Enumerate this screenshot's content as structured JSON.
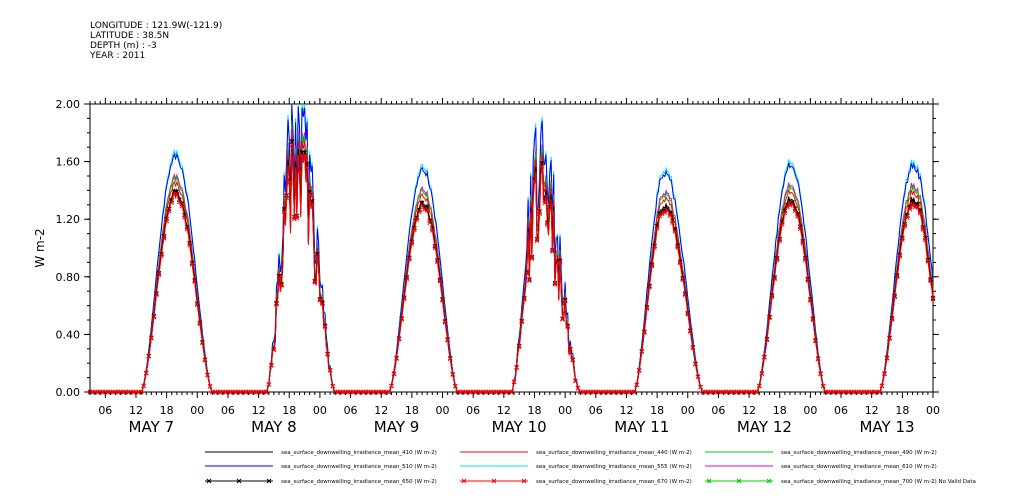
{
  "header": {
    "longitude": "LONGITUDE : 121.9W(-121.9)",
    "latitude": "LATITUDE : 38.5N",
    "depth": "DEPTH (m) : -3",
    "year": "YEAR : 2011"
  },
  "chart_data": {
    "type": "line",
    "ylabel": "W m-2",
    "ylim": [
      0,
      2
    ],
    "yticks": [
      "0.00",
      "0.40",
      "0.80",
      "1.20",
      "1.60",
      "2.00"
    ],
    "x_tick_labels": [
      "06",
      "12",
      "18",
      "00",
      "06",
      "12",
      "18",
      "00",
      "06",
      "12",
      "18",
      "00",
      "06",
      "12",
      "18",
      "00",
      "06",
      "12",
      "18",
      "00",
      "06",
      "12",
      "18",
      "00",
      "06",
      "12",
      "18",
      "00"
    ],
    "x_day_labels": [
      "MAY  7",
      "MAY  8",
      "MAY  9",
      "MAY 10",
      "MAY 11",
      "MAY 12",
      "MAY 13"
    ],
    "x_range_hours": [
      3,
      168
    ],
    "grid": false,
    "legend_placement": "bottom",
    "legend": [
      {
        "label": "sea_surface_downwelling_irradiance_mean_410 (W m-2)",
        "color": "#000000"
      },
      {
        "label": "sea_surface_downwelling_irradiance_mean_440 (W m-2)",
        "color": "#ff0000"
      },
      {
        "label": "sea_surface_downwelling_irradiance_mean_490 (W m-2)",
        "color": "#00cc00"
      },
      {
        "label": "sea_surface_downwelling_irradiance_mean_510 (W m-2)",
        "color": "#0000ff"
      },
      {
        "label": "sea_surface_downwelling_irradiance_mean_555 (W m-2)",
        "color": "#00e5e5"
      },
      {
        "label": "sea_surface_downwelling_irradiance_mean_610 (W m-2)",
        "color": "#e000e0"
      },
      {
        "label": "sea_surface_downwelling_irradiance_mean_650 (W m-2)",
        "color": "#000000",
        "marker": "x"
      },
      {
        "label": "sea_surface_downwelling_irradiance_mean_670 (W m-2)",
        "color": "#ff0000",
        "marker": "x"
      },
      {
        "label": "sea_surface_downwelling_irradiance_mean_700 (W m-2) No Valid Data",
        "color": "#00cc00",
        "marker": "x"
      }
    ],
    "days": [
      {
        "label": "May 7",
        "rise_hour": 13.0,
        "set_hour": 27.0,
        "peak_hour": 19.8,
        "peak": 1.66
      },
      {
        "label": "May 8",
        "rise_hour": 37.5,
        "set_hour": 51.0,
        "peak_hour": 43.5,
        "peak": 1.88
      },
      {
        "label": "May 9",
        "rise_hour": 61.5,
        "set_hour": 75.0,
        "peak_hour": 68.2,
        "peak": 1.57
      },
      {
        "label": "May 10",
        "rise_hour": 85.5,
        "set_hour": 99.0,
        "peak_hour": 91.0,
        "peak": 1.58
      },
      {
        "label": "May 11",
        "rise_hour": 109.5,
        "set_hour": 123.0,
        "peak_hour": 115.5,
        "peak": 1.55
      },
      {
        "label": "May 12",
        "rise_hour": 133.5,
        "set_hour": 147.0,
        "peak_hour": 140.2,
        "peak": 1.6
      },
      {
        "label": "May 13",
        "rise_hour": 157.5,
        "set_hour": 171.0,
        "peak_hour": 164.2,
        "peak": 1.6
      }
    ],
    "series": [
      {
        "color": "#00e5e5",
        "scale": 1.0,
        "marker": false
      },
      {
        "color": "#0000ff",
        "scale": 0.985,
        "marker": false
      },
      {
        "color": "#e000e0",
        "scale": 0.9,
        "marker": false
      },
      {
        "color": "#00cc00",
        "scale": 0.89,
        "marker": false
      },
      {
        "color": "#ff0000",
        "scale": 0.87,
        "marker": false
      },
      {
        "color": "#000000",
        "scale": 0.84,
        "marker": false
      },
      {
        "color": "#000000",
        "scale": 0.83,
        "marker": true
      },
      {
        "color": "#ff0000",
        "scale": 0.82,
        "marker": true
      }
    ]
  }
}
